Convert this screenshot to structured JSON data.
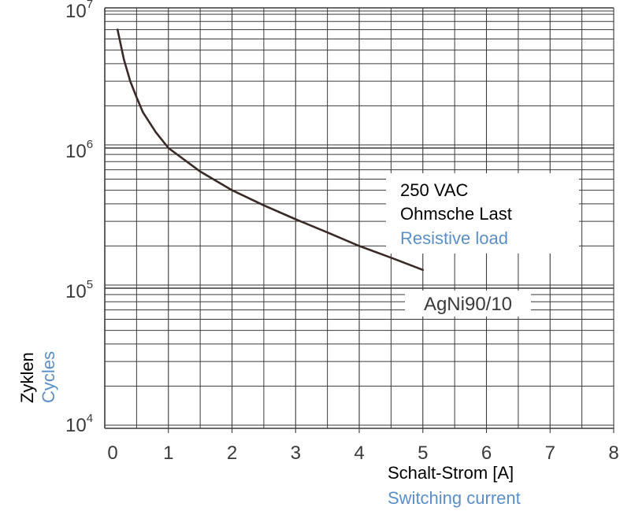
{
  "chart_data": {
    "type": "line",
    "x_scale": "linear",
    "y_scale": "log",
    "xlim": [
      0,
      8
    ],
    "ylim": [
      10000,
      10000000
    ],
    "x_ticks": [
      "0",
      "1",
      "2",
      "3",
      "4",
      "5",
      "6",
      "7",
      "8"
    ],
    "y_ticks": [
      {
        "base": "10",
        "exp": "4"
      },
      {
        "base": "10",
        "exp": "5"
      },
      {
        "base": "10",
        "exp": "6"
      },
      {
        "base": "10",
        "exp": "7"
      }
    ],
    "grid": true,
    "xlabel": {
      "primary": "Schalt-Strom [A]",
      "secondary": "Switching current"
    },
    "ylabel": {
      "primary": "Zyklen",
      "secondary": "Cycles"
    },
    "annotation": {
      "lines": [
        "250 VAC",
        "Ohmsche Last",
        "Resistive load"
      ],
      "colors": [
        "#000000",
        "#000000",
        "#5b8fc9"
      ]
    },
    "series": [
      {
        "name": "AgNi90/10",
        "color": "#3a2a28",
        "x": [
          0.2,
          0.3,
          0.4,
          0.5,
          0.6,
          0.8,
          1.0,
          1.5,
          2.0,
          2.5,
          3.0,
          3.5,
          4.0,
          4.5,
          5.0
        ],
        "y": [
          7000000,
          4300000,
          3000000,
          2300000,
          1800000,
          1300000,
          1000000,
          680000,
          500000,
          390000,
          310000,
          250000,
          200000,
          165000,
          135000
        ]
      }
    ],
    "colors": {
      "grid": "#3a3a3a",
      "axis_text": "#3a3a3a",
      "label_primary": "#000000",
      "label_secondary": "#5b8fc9"
    }
  }
}
